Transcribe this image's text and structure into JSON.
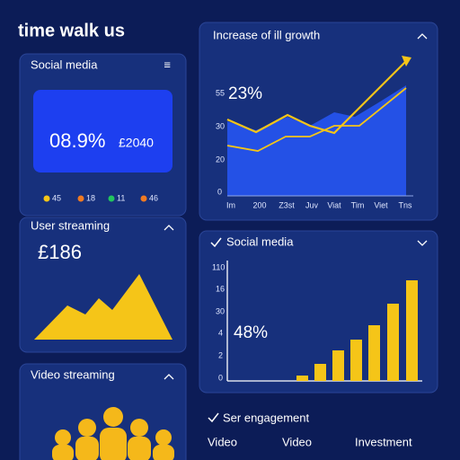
{
  "header": {
    "title": "time walk us"
  },
  "social_panel": {
    "title": "Social media",
    "menu_icon": "≡",
    "stat": "08.9%",
    "amount": "£2040",
    "legend": [
      "45",
      "18",
      "11",
      "46"
    ]
  },
  "user_panel": {
    "title": "User streaming",
    "amount": "£186"
  },
  "video_panel": {
    "title": "Video streaming"
  },
  "growth_panel": {
    "title": "Increase of ill growth",
    "stat": "23%",
    "y_labels": [
      "55",
      "30",
      "20",
      "0"
    ],
    "x_labels": [
      "Im",
      "200",
      "Z3st",
      "Juv",
      "Viat",
      "Tim",
      "Viet",
      "Tns"
    ]
  },
  "social_bars_panel": {
    "title": "Social media",
    "stat": "48%",
    "y_labels": [
      "110",
      "16",
      "30",
      "4",
      "2",
      "0"
    ]
  },
  "engagement": {
    "title": "Ser engagement",
    "columns": [
      "Video",
      "Video",
      "Investment"
    ]
  }
}
